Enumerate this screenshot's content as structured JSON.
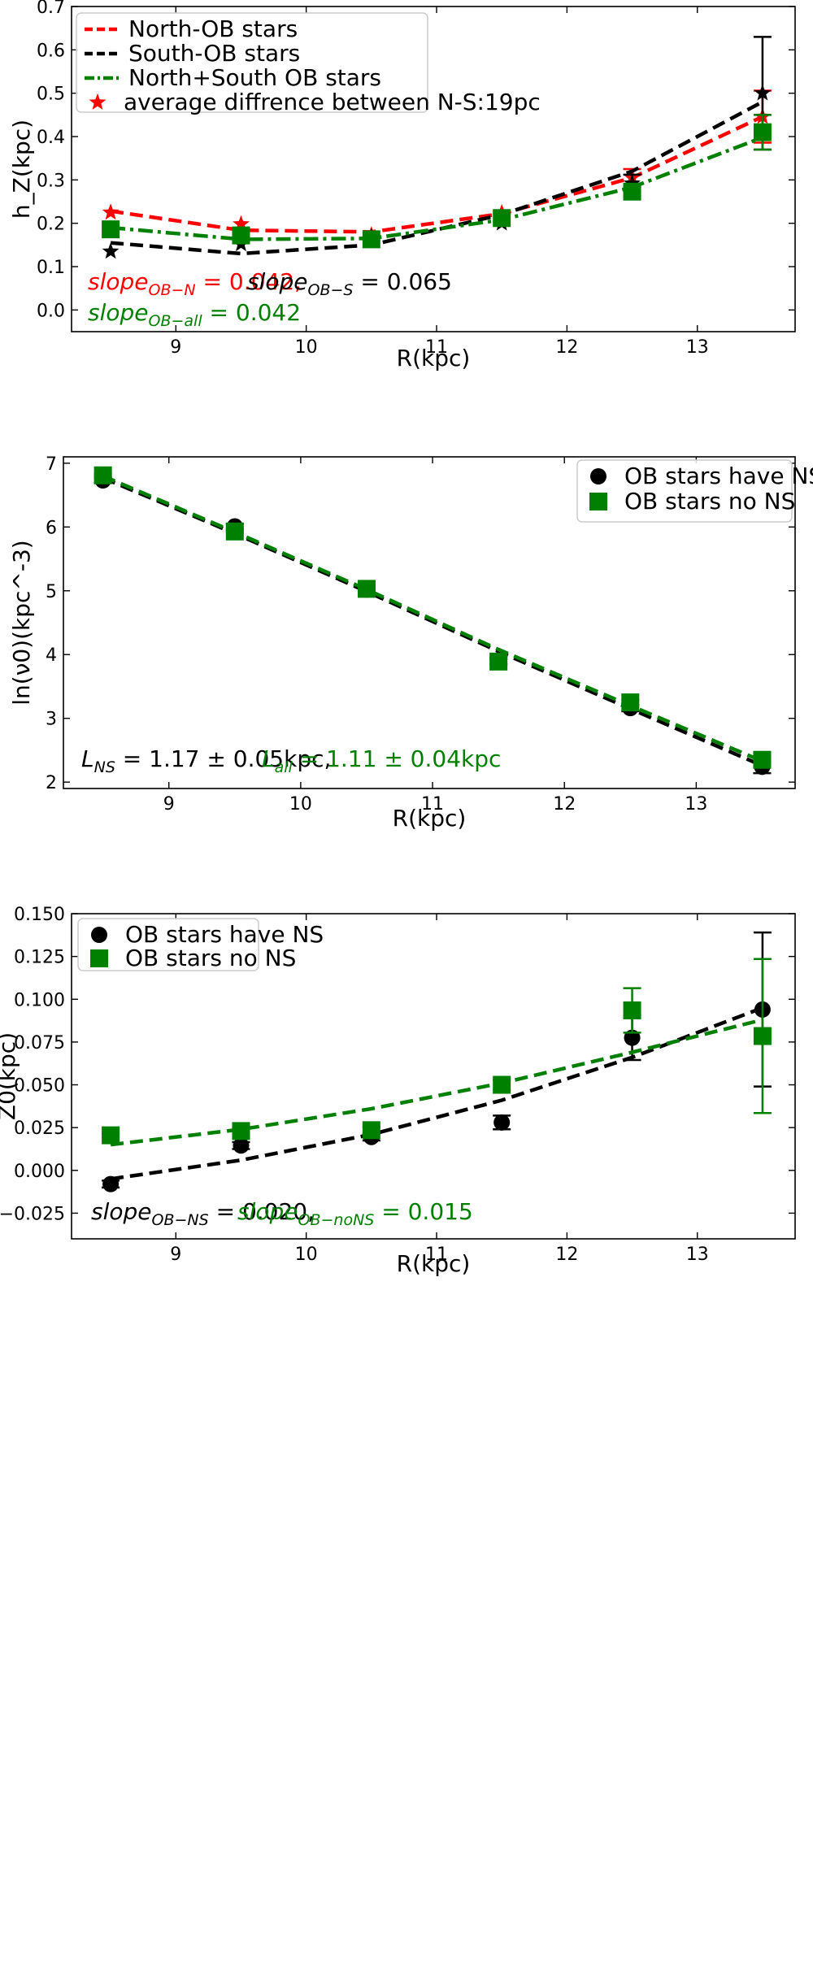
{
  "chart_data": [
    {
      "type": "line",
      "xlabel": "R(kpc)",
      "ylabel": "h_Z(kpc)",
      "xlim": [
        8.2,
        13.75
      ],
      "ylim": [
        -0.05,
        0.7
      ],
      "xticks": [
        "9",
        "10",
        "11",
        "12",
        "13"
      ],
      "yticks": [
        "0.0",
        "0.1",
        "0.2",
        "0.3",
        "0.4",
        "0.5",
        "0.6",
        "0.7"
      ],
      "legend_position": "top-left",
      "x": [
        8.5,
        9.5,
        10.5,
        11.5,
        12.5,
        13.5
      ],
      "series": [
        {
          "name": "North-OB stars",
          "color": "#ff0000",
          "style": "dashed",
          "marker": "star",
          "fit": [
            0.228,
            0.184,
            0.18,
            0.222,
            0.305,
            0.446
          ],
          "values": [
            0.225,
            0.198,
            0.173,
            0.224,
            0.305,
            0.446
          ],
          "errors": [
            0,
            0,
            0,
            0,
            0.02,
            0.06
          ]
        },
        {
          "name": "South-OB stars",
          "color": "#000000",
          "style": "dashed",
          "marker": "star",
          "fit": [
            0.155,
            0.13,
            0.15,
            0.22,
            0.32,
            0.48
          ],
          "values": [
            0.135,
            0.152,
            0.168,
            0.2,
            0.292,
            0.5
          ],
          "errors": [
            0,
            0,
            0,
            0,
            0.02,
            0.13
          ]
        },
        {
          "name": "North+South OB stars",
          "color": "#008000",
          "style": "dashdot",
          "marker": "square",
          "fit": [
            0.19,
            0.163,
            0.165,
            0.208,
            0.283,
            0.398
          ],
          "values": [
            0.186,
            0.172,
            0.163,
            0.212,
            0.273,
            0.41
          ],
          "errors": [
            0,
            0,
            0,
            0,
            0.01,
            0.04
          ]
        }
      ],
      "legend_extra": {
        "name": "average diffrence between N-S:19pc",
        "color": "#ff0000",
        "marker": "star"
      },
      "annotations": [
        {
          "text": "slope",
          "sub": "OB−N",
          "rest": "= 0.042,",
          "color": "#ff0000"
        },
        {
          "text": "slope",
          "sub": "OB−S",
          "rest": "= 0.065",
          "color": "#000000"
        },
        {
          "text": "slope",
          "sub": "OB−all",
          "rest": "= 0.042",
          "color": "#008000"
        }
      ]
    },
    {
      "type": "line",
      "xlabel": "R(kpc)",
      "ylabel": "ln(ν0)(kpc^-3)",
      "xlim": [
        8.2,
        13.75
      ],
      "ylim": [
        1.9,
        7.1
      ],
      "xticks": [
        "9",
        "10",
        "11",
        "12",
        "13"
      ],
      "yticks": [
        "2",
        "3",
        "4",
        "5",
        "6",
        "7"
      ],
      "legend_position": "top-right",
      "x": [
        8.5,
        9.5,
        10.5,
        11.5,
        12.5,
        13.5
      ],
      "series": [
        {
          "name": "OB stars have NS",
          "color": "#000000",
          "style": "dashed",
          "marker": "circle",
          "fit": [
            6.77,
            5.9,
            4.99,
            4.05,
            3.15,
            2.26
          ],
          "values": [
            6.73,
            6.01,
            5.02,
            3.9,
            3.16,
            2.24
          ],
          "errors": [
            0.04,
            0.04,
            0.04,
            0.05,
            0.05,
            0.1
          ]
        },
        {
          "name": "OB stars no NS",
          "color": "#008000",
          "style": "dashed",
          "marker": "square",
          "fit": [
            6.8,
            5.92,
            5.02,
            4.08,
            3.2,
            2.33
          ],
          "values": [
            6.81,
            5.93,
            5.03,
            3.89,
            3.25,
            2.35
          ],
          "errors": [
            0.02,
            0.02,
            0.03,
            0.04,
            0.04,
            0.05
          ]
        }
      ],
      "annotations": [
        {
          "text": "L",
          "sub": "NS",
          "rest": "= 1.17 ± 0.05kpc,",
          "color": "#000000"
        },
        {
          "text": "L",
          "sub": "all",
          "rest": "= 1.11 ± 0.04kpc",
          "color": "#008000"
        }
      ]
    },
    {
      "type": "line",
      "xlabel": "R(kpc)",
      "ylabel": "Z0(kpc)",
      "xlim": [
        8.2,
        13.75
      ],
      "ylim": [
        -0.04,
        0.15
      ],
      "xticks": [
        "9",
        "10",
        "11",
        "12",
        "13"
      ],
      "yticks": [
        "0.150",
        "0.125",
        "0.100",
        "0.075",
        "0.050",
        "0.025",
        "0.000",
        "−0.025"
      ],
      "ytick_values": [
        0.15,
        0.125,
        0.1,
        0.075,
        0.05,
        0.025,
        0.0,
        -0.025
      ],
      "legend_position": "top-left",
      "x": [
        8.5,
        9.5,
        10.5,
        11.5,
        12.5,
        13.5
      ],
      "series": [
        {
          "name": "OB stars have NS",
          "color": "#000000",
          "style": "dashed",
          "marker": "circle",
          "fit": [
            -0.005,
            0.006,
            0.021,
            0.041,
            0.066,
            0.095
          ],
          "values": [
            -0.008,
            0.0145,
            0.0195,
            0.028,
            0.0775,
            0.094
          ],
          "errors": [
            0.002,
            0.002,
            0.002,
            0.004,
            0.013,
            0.045
          ]
        },
        {
          "name": "OB stars no NS",
          "color": "#008000",
          "style": "dashed",
          "marker": "square",
          "fit": [
            0.015,
            0.024,
            0.036,
            0.051,
            0.069,
            0.088
          ],
          "values": [
            0.0205,
            0.023,
            0.0235,
            0.05,
            0.0935,
            0.0785
          ],
          "errors": [
            0.001,
            0.002,
            0.002,
            0.003,
            0.013,
            0.045
          ]
        }
      ],
      "annotations": [
        {
          "text": "slope",
          "sub": "OB−NS",
          "rest": "= 0.020,",
          "color": "#000000"
        },
        {
          "text": "slope",
          "sub": "OB−noNS",
          "rest": "= 0.015",
          "color": "#008000"
        }
      ]
    }
  ]
}
